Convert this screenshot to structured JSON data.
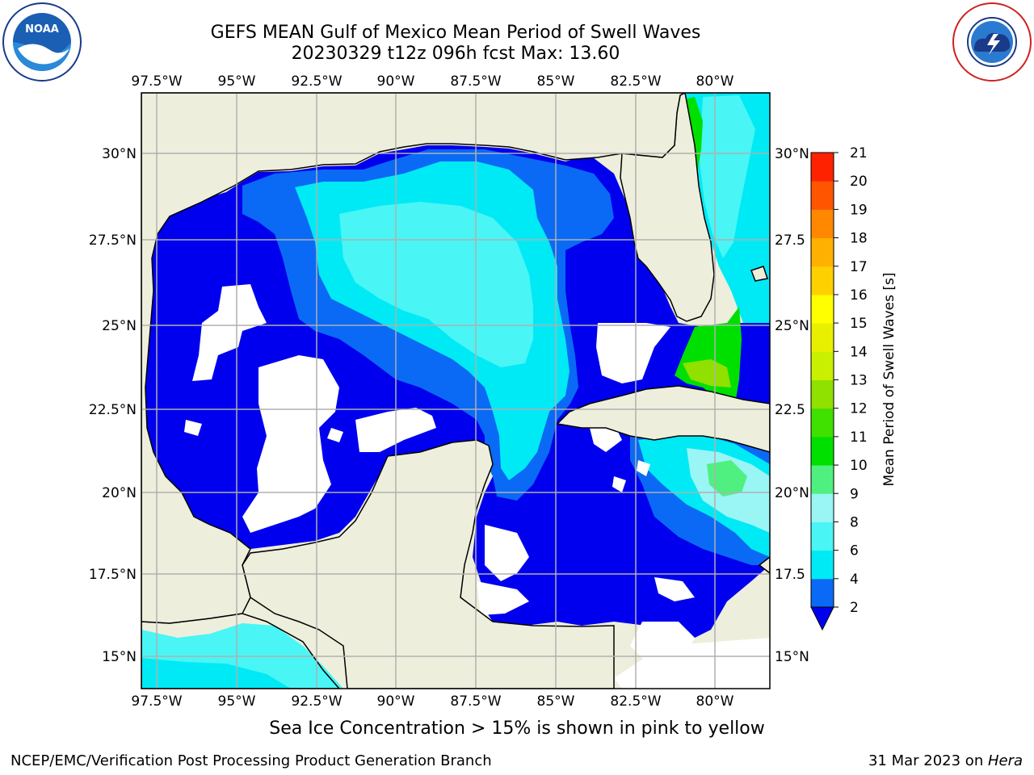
{
  "header": {
    "title_line1": "GEFS MEAN Gulf of Mexico Mean Period of Swell Waves",
    "title_line2": "20230329 t12z 096h fcst   Max: 13.60"
  },
  "map": {
    "lon_labels": [
      "97.5°W",
      "95°W",
      "92.5°W",
      "90°W",
      "87.5°W",
      "85°W",
      "82.5°W",
      "80°W"
    ],
    "lon_values": [
      -97.5,
      -95,
      -92.5,
      -90,
      -87.5,
      -85,
      -82.5,
      -80
    ],
    "lat_labels_left": [
      "30°N",
      "27.5°N",
      "25°N",
      "22.5°N",
      "20°N",
      "17.5°N",
      "15°N"
    ],
    "lat_labels_right": [
      "30°N",
      "27.5",
      "25°N",
      "22.5",
      "20°N",
      "17.5",
      "15°N"
    ],
    "lat_values": [
      30,
      27.5,
      25,
      22.5,
      20,
      17.5,
      15
    ],
    "extent": {
      "lon_min": -98,
      "lon_max": -78.3,
      "lat_min": 14,
      "lat_max": 31.8
    },
    "colors": {
      "land": "#eeeedc",
      "grid": "#b0b0b0",
      "coast": "#000000"
    }
  },
  "colorbar": {
    "label": "Mean Period of Swell Waves [s]",
    "ticks": [
      "2",
      "4",
      "6",
      "8",
      "9",
      "10",
      "11",
      "12",
      "13",
      "14",
      "15",
      "16",
      "17",
      "18",
      "19",
      "20",
      "21"
    ],
    "colors": [
      "#0a6af5",
      "#00eaf5",
      "#4af5f5",
      "#9af5f5",
      "#50f080",
      "#00e000",
      "#40e000",
      "#90e000",
      "#c8f000",
      "#e8f000",
      "#ffff00",
      "#ffd000",
      "#ffb000",
      "#ff8800",
      "#ff5500",
      "#ff2200"
    ],
    "extend_color": "#0000ee"
  },
  "subtitle": "Sea Ice Concentration > 15% is shown in pink to yellow",
  "footer": {
    "left": "NCEP/EMC/Verification Post Processing Product Generation Branch",
    "right_prefix": "31 Mar 2023 on ",
    "right_host": "Hera"
  },
  "logos": {
    "left": "noaa-logo",
    "right": "national-weather-service-logo"
  }
}
